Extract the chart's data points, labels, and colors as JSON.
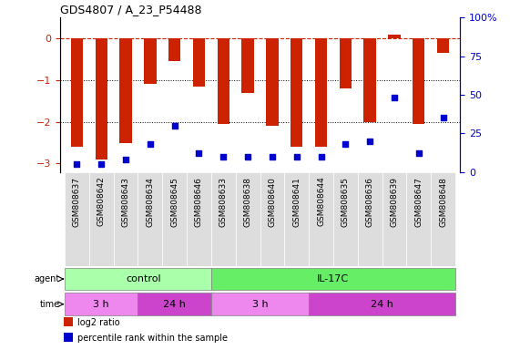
{
  "title": "GDS4807 / A_23_P54488",
  "samples": [
    "GSM808637",
    "GSM808642",
    "GSM808643",
    "GSM808634",
    "GSM808645",
    "GSM808646",
    "GSM808633",
    "GSM808638",
    "GSM808640",
    "GSM808641",
    "GSM808644",
    "GSM808635",
    "GSM808636",
    "GSM808639",
    "GSM808647",
    "GSM808648"
  ],
  "log2_ratio": [
    -2.6,
    -2.9,
    -2.5,
    -1.1,
    -0.55,
    -1.15,
    -2.05,
    -1.3,
    -2.1,
    -2.6,
    -2.6,
    -1.2,
    -2.0,
    0.1,
    -2.05,
    -0.35
  ],
  "percentile": [
    5,
    5,
    8,
    18,
    30,
    12,
    10,
    10,
    10,
    10,
    10,
    18,
    20,
    48,
    12,
    35
  ],
  "ylim_left": [
    -3.2,
    0.5
  ],
  "ylim_right": [
    0,
    100
  ],
  "yticks_left": [
    0,
    -1,
    -2,
    -3
  ],
  "yticks_right": [
    0,
    25,
    50,
    75,
    100
  ],
  "bar_color": "#cc2200",
  "dot_color": "#0000cc",
  "dotted_lines": [
    -1,
    -2
  ],
  "agent_control_count": 6,
  "agent_il17c_count": 10,
  "agent_control_label": "control",
  "agent_il17c_label": "IL-17C",
  "time_groups": [
    {
      "label": "3 h",
      "start": 0,
      "end": 3,
      "color": "#ee88ee"
    },
    {
      "label": "24 h",
      "start": 3,
      "end": 6,
      "color": "#cc44cc"
    },
    {
      "label": "3 h",
      "start": 6,
      "end": 10,
      "color": "#ee88ee"
    },
    {
      "label": "24 h",
      "start": 10,
      "end": 16,
      "color": "#cc44cc"
    }
  ],
  "agent_colors": [
    "#aaffaa",
    "#66ee66"
  ],
  "sample_box_color": "#dddddd",
  "legend_items": [
    {
      "label": "log2 ratio",
      "color": "#cc2200"
    },
    {
      "label": "percentile rank within the sample",
      "color": "#0000cc"
    }
  ],
  "bar_width": 0.5,
  "right_axis_color": "#0000cc",
  "left_axis_color": "#cc2200"
}
